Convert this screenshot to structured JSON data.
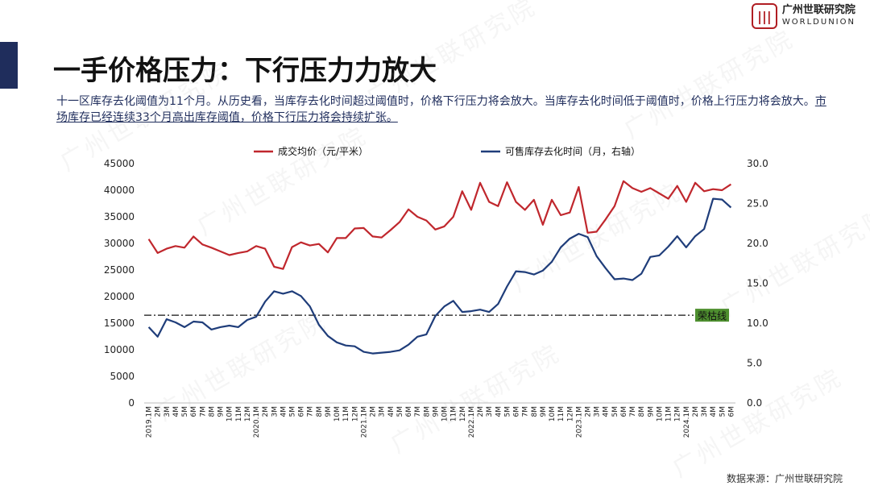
{
  "header": {
    "title": "一手价格压力：下行压力力放大",
    "intro_plain": "十一区库存去化阈值为11个月。从历史看，当库存去化时间超过阈值时，价格下行压力将会放大。当库存去化时间低于阈值时，价格上行压力将会放大。",
    "intro_underlined": "市场库存已经连续33个月高出库存阈值，价格下行压力将会持续扩张。"
  },
  "logo": {
    "cn": "广州世联研究院",
    "en": "WORLDUNION"
  },
  "source": "数据来源：广州世联研究院",
  "watermark_text": "广州世联研究院",
  "colors": {
    "price": "#c0272d",
    "inventory": "#1f3d7a",
    "threshold_label_bg": "#4e8f2f",
    "title_bar": "#1f2d5c"
  },
  "chart_data": {
    "type": "line",
    "x": [
      "2019.1M",
      "2M",
      "3M",
      "4M",
      "5M",
      "6M",
      "7M",
      "8M",
      "9M",
      "10M",
      "11M",
      "12M",
      "2020.1M",
      "2M",
      "3M",
      "4M",
      "5M",
      "6M",
      "7M",
      "8M",
      "9M",
      "10M",
      "11M",
      "12M",
      "2021.1M",
      "2M",
      "3M",
      "4M",
      "5M",
      "6M",
      "7M",
      "8M",
      "9M",
      "10M",
      "11M",
      "12M",
      "2022.1M",
      "2M",
      "3M",
      "4M",
      "5M",
      "6M",
      "7M",
      "8M",
      "9M",
      "10M",
      "11M",
      "12M",
      "2023.1M",
      "2M",
      "3M",
      "4M",
      "5M",
      "6M",
      "7M",
      "8M",
      "9M",
      "10M",
      "11M",
      "12M",
      "2024.1M",
      "2M",
      "3M",
      "4M",
      "5M",
      "6M"
    ],
    "series": [
      {
        "name": "成交均价（元/平米）",
        "axis": "left",
        "values": [
          30800,
          28200,
          29000,
          29500,
          29200,
          31300,
          29800,
          29200,
          28500,
          27800,
          28200,
          28500,
          29500,
          29000,
          25600,
          25200,
          29300,
          30200,
          29600,
          29900,
          28300,
          31000,
          31000,
          32800,
          32900,
          31300,
          31100,
          32500,
          34000,
          36400,
          35000,
          34300,
          32600,
          33200,
          35000,
          39800,
          36300,
          41400,
          37800,
          37000,
          41500,
          37800,
          36300,
          38200,
          33500,
          38200,
          35300,
          35800,
          40600,
          32000,
          32200,
          34500,
          37000,
          41700,
          40400,
          39700,
          40400,
          39400,
          38400,
          40800,
          37800,
          41400,
          39800,
          40200,
          40000,
          41100
        ]
      },
      {
        "name": "可售库存去化时间（月，右轴）",
        "axis": "right",
        "values": [
          9.5,
          8.3,
          10.5,
          10.1,
          9.5,
          10.2,
          10.1,
          9.2,
          9.5,
          9.7,
          9.5,
          10.4,
          10.8,
          12.7,
          14.0,
          13.7,
          14.0,
          13.4,
          12.1,
          9.8,
          8.4,
          7.6,
          7.2,
          7.1,
          6.4,
          6.2,
          6.3,
          6.4,
          6.6,
          7.3,
          8.3,
          8.6,
          10.9,
          12.1,
          12.8,
          11.4,
          11.5,
          11.7,
          11.4,
          12.4,
          14.6,
          16.5,
          16.4,
          16.1,
          16.6,
          17.7,
          19.5,
          20.6,
          21.2,
          20.8,
          18.4,
          16.9,
          15.5,
          15.6,
          15.4,
          16.2,
          18.3,
          18.5,
          19.6,
          20.9,
          19.5,
          20.9,
          21.8,
          25.6,
          25.5,
          24.5
        ]
      }
    ],
    "threshold": {
      "value": 11,
      "axis": "right",
      "label": "荣枯线"
    },
    "y_left": {
      "min": 0,
      "max": 45000,
      "step": 5000,
      "ticks": [
        "0",
        "5000",
        "10000",
        "15000",
        "20000",
        "25000",
        "30000",
        "35000",
        "40000",
        "45000"
      ]
    },
    "y_right": {
      "min": 0,
      "max": 30,
      "step": 5,
      "ticks": [
        "0.0",
        "5.0",
        "10.0",
        "15.0",
        "20.0",
        "25.0",
        "30.0"
      ]
    },
    "grid": false,
    "legend_position": "top"
  }
}
